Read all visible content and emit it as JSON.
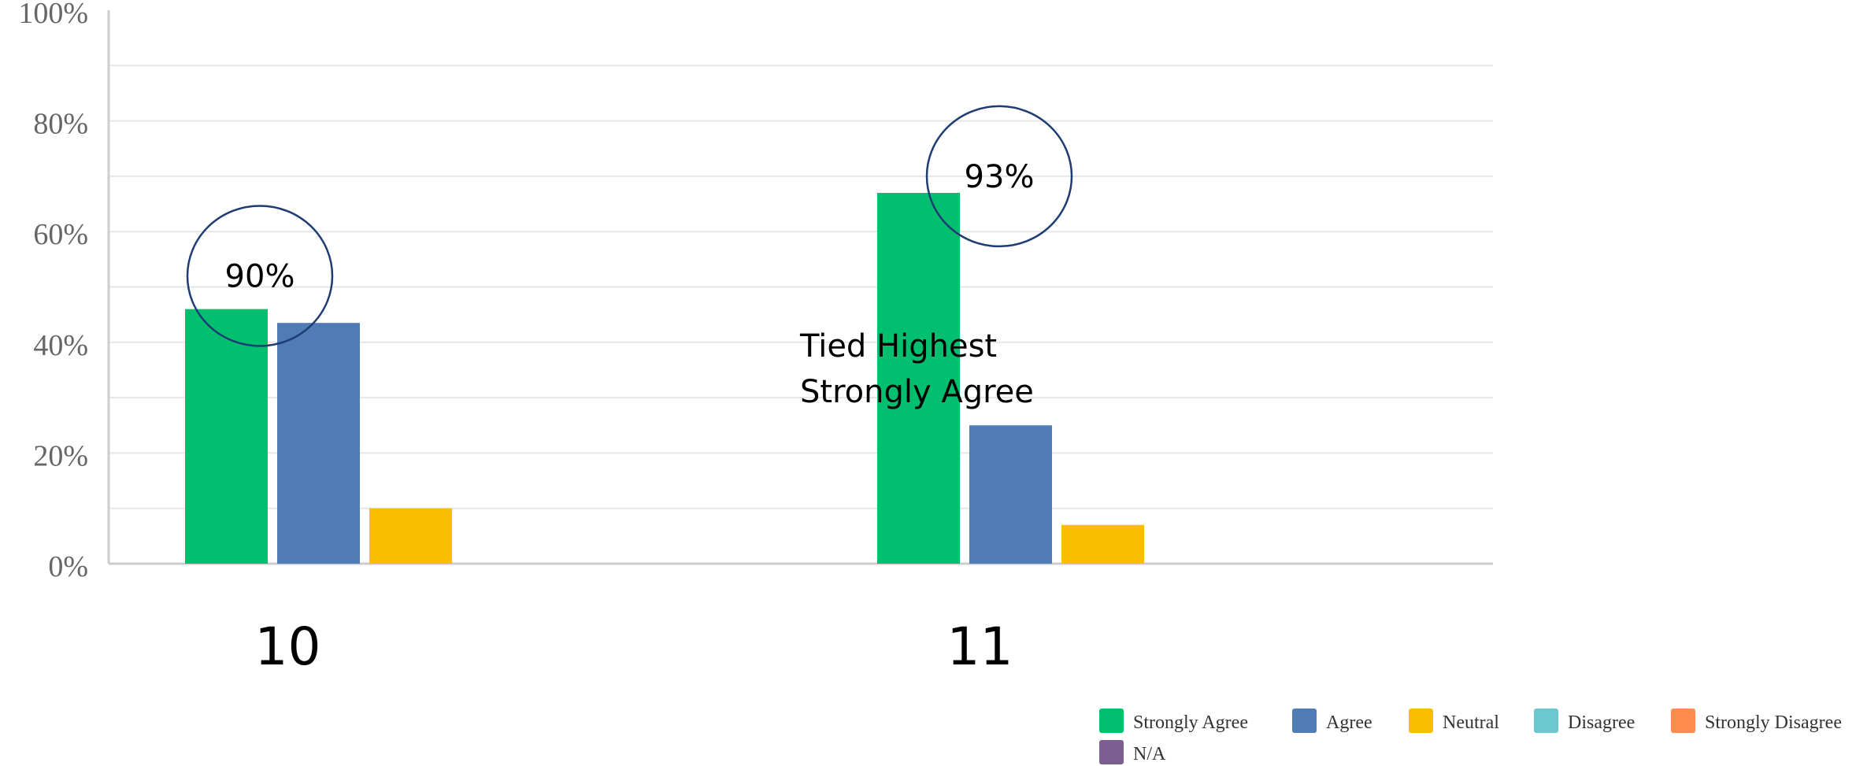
{
  "chart_data": {
    "type": "bar",
    "categories": [
      "10",
      "11"
    ],
    "series": [
      {
        "name": "Strongly Agree",
        "color": "#00BF6F",
        "values": [
          46,
          67
        ]
      },
      {
        "name": "Agree",
        "color": "#507CB6",
        "values": [
          43.5,
          25
        ]
      },
      {
        "name": "Neutral",
        "color": "#F9BE00",
        "values": [
          10,
          7
        ]
      },
      {
        "name": "Disagree",
        "color": "#6BC8CD",
        "values": [
          0,
          0
        ]
      },
      {
        "name": "Strongly Disagree",
        "color": "#FF8B4F",
        "values": [
          0,
          0
        ]
      },
      {
        "name": "N/A",
        "color": "#7D5E90",
        "values": [
          0,
          0
        ]
      }
    ],
    "yticks": [
      "0%",
      "20%",
      "40%",
      "60%",
      "80%",
      "100%"
    ],
    "ylim": [
      0,
      100
    ],
    "grid": true,
    "legend_position": "bottom-right",
    "annotations": [
      {
        "text": "90%",
        "category": "10",
        "y": 52
      },
      {
        "text": "93%",
        "category": "11",
        "y": 70
      },
      {
        "text_lines": [
          "Tied Highest",
          "Strongly Agree"
        ],
        "category": "11",
        "y": 40
      }
    ]
  }
}
